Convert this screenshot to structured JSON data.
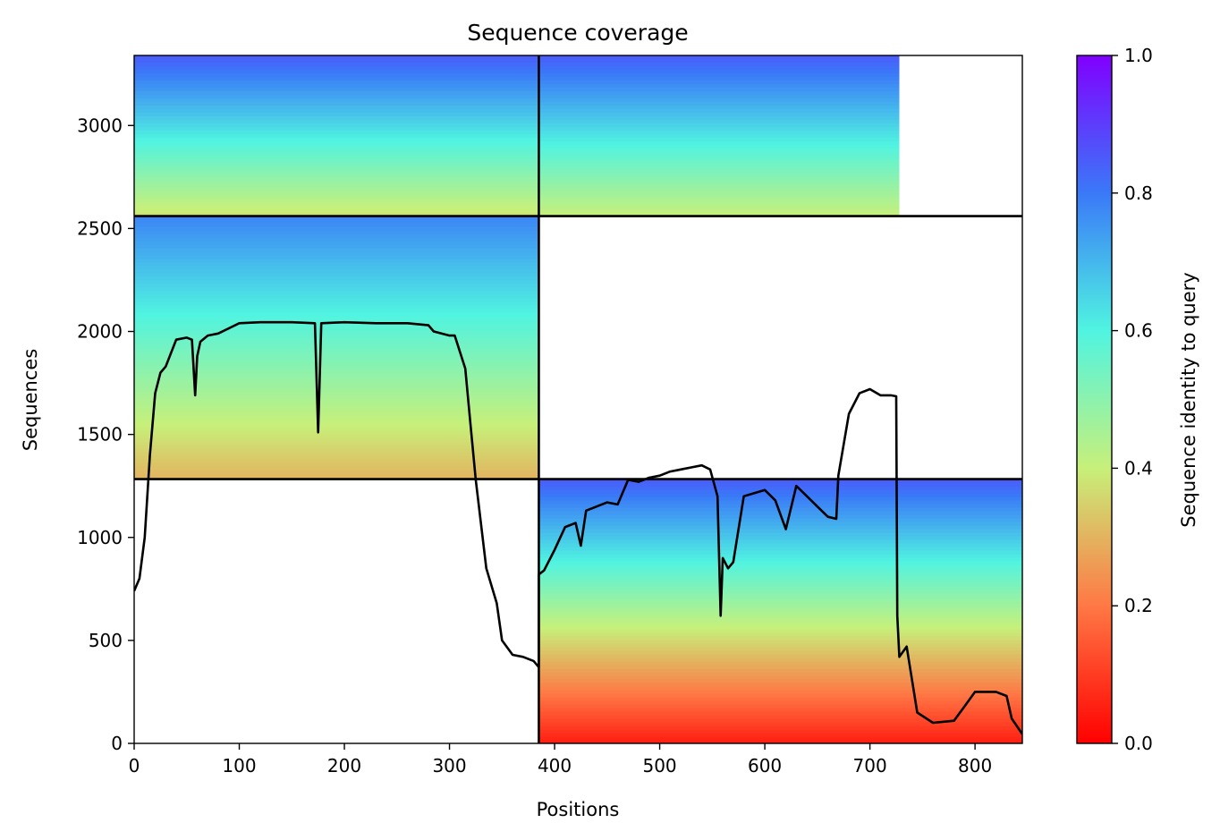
{
  "chart_data": {
    "type": "heatmap",
    "title": "Sequence coverage",
    "xlabel": "Positions",
    "ylabel": "Sequences",
    "xlim": [
      0,
      845
    ],
    "ylim": [
      0,
      3340
    ],
    "xticks": [
      0,
      100,
      200,
      300,
      400,
      500,
      600,
      700,
      800
    ],
    "yticks": [
      0,
      500,
      1000,
      1500,
      2000,
      2500,
      3000
    ],
    "colormap": "rainbow_r",
    "colorbar": {
      "label": "Sequence identity to query",
      "range": [
        0.0,
        1.0
      ],
      "ticks": [
        "0.0",
        "0.2",
        "0.4",
        "0.6",
        "0.8",
        "1.0"
      ],
      "colors": [
        "#ff0000",
        "#ff7845",
        "#c7f07a",
        "#50f4e1",
        "#3a79f8",
        "#8000ff"
      ]
    },
    "grid": false,
    "chain_boundaries": {
      "x": 385,
      "y": [
        1283,
        2560
      ]
    },
    "blocks": [
      {
        "name": "chain-1-paired",
        "x": [
          0,
          385
        ],
        "y": [
          2560,
          3340
        ],
        "identity_bottom": 0.38,
        "identity_top": 0.85
      },
      {
        "name": "chain-2-paired",
        "x": [
          385,
          728
        ],
        "y": [
          2560,
          3340
        ],
        "identity_bottom": 0.4,
        "identity_top": 0.85
      },
      {
        "name": "chain-1-unpaired",
        "x": [
          0,
          385
        ],
        "y": [
          1283,
          2560
        ],
        "identity_bottom": 0.3,
        "identity_top": 0.78
      },
      {
        "name": "chain-2-unpaired",
        "x": [
          385,
          845
        ],
        "y": [
          0,
          1283
        ],
        "identity_bottom": 0.05,
        "identity_top": 0.85
      }
    ],
    "series": [
      {
        "type": "line",
        "color": "#000000",
        "x": [
          0,
          5,
          10,
          15,
          20,
          25,
          30,
          40,
          50,
          55,
          58,
          60,
          63,
          70,
          80,
          100,
          120,
          150,
          172,
          175,
          178,
          200,
          230,
          260,
          280,
          285,
          300,
          305,
          315,
          320,
          325,
          335,
          345,
          350,
          360,
          370,
          380,
          385,
          385,
          390,
          400,
          410,
          420,
          425,
          430,
          440,
          450,
          460,
          470,
          480,
          490,
          500,
          510,
          520,
          530,
          540,
          548,
          555,
          558,
          560,
          565,
          570,
          580,
          600,
          610,
          620,
          630,
          640,
          650,
          660,
          668,
          670,
          680,
          690,
          700,
          710,
          720,
          725,
          726,
          728,
          735,
          745,
          760,
          780,
          790,
          800,
          820,
          830,
          835,
          845
        ],
        "y": [
          740,
          800,
          1000,
          1400,
          1700,
          1800,
          1830,
          1960,
          1970,
          1960,
          1690,
          1880,
          1950,
          1980,
          1990,
          2040,
          2045,
          2045,
          2040,
          1510,
          2040,
          2045,
          2040,
          2040,
          2030,
          2000,
          1980,
          1980,
          1820,
          1550,
          1280,
          850,
          680,
          500,
          430,
          420,
          400,
          370,
          820,
          840,
          940,
          1050,
          1070,
          960,
          1130,
          1150,
          1170,
          1160,
          1280,
          1270,
          1290,
          1300,
          1320,
          1330,
          1340,
          1350,
          1330,
          1200,
          620,
          900,
          850,
          880,
          1200,
          1230,
          1180,
          1040,
          1250,
          1200,
          1150,
          1100,
          1090,
          1300,
          1600,
          1700,
          1720,
          1690,
          1690,
          1685,
          620,
          420,
          470,
          150,
          100,
          110,
          180,
          250,
          250,
          230,
          120,
          45
        ]
      }
    ]
  }
}
